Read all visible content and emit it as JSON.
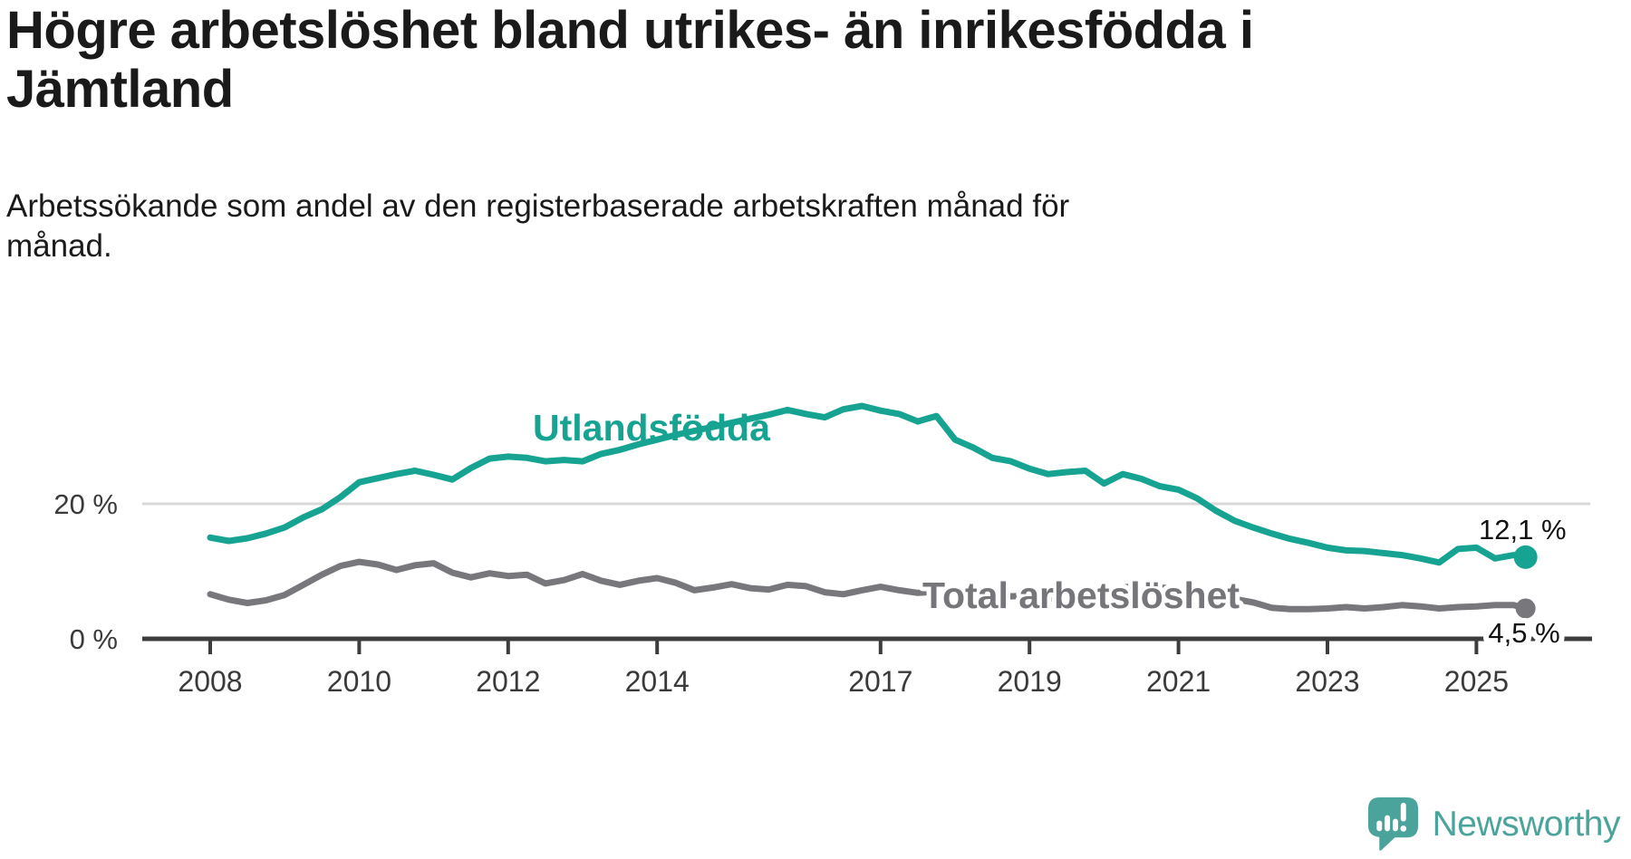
{
  "title": "Högre arbetslöshet bland utrikes- än inrikesfödda i\nJämtland",
  "subtitle": "Arbetssökande som andel av den registerbaserade arbetskraften månad för\nmånad.",
  "branding": {
    "name": "Newsworthy",
    "color": "#4ba49b",
    "icon": "newsworthy-bubble-chart-icon"
  },
  "colors": {
    "accent_teal": "#17a392",
    "line_gray": "#77777c",
    "series_label_gray": "#75757a",
    "axis": "#3d3d3d",
    "gridline": "#d8d8d8",
    "text": "#1a1a1a",
    "tick_text": "#3a3a3a"
  },
  "chart_data": {
    "type": "line",
    "title": "Högre arbetslöshet bland utrikes- än inrikesfödda i Jämtland",
    "xlabel": "",
    "ylabel": "Arbetssökande som andel av den registerbaserade arbetskraften (%)",
    "x_unit": "decimal_year",
    "xlim": [
      2007.9,
      2025.9
    ],
    "ylim": [
      0,
      36
    ],
    "grid": "y-only-at-20",
    "legend_position": "inline-labels",
    "x_ticks": [
      2008,
      2010,
      2012,
      2014,
      2017,
      2019,
      2021,
      2023,
      2025
    ],
    "y_ticks": [
      {
        "value": 0,
        "label": "0 %"
      },
      {
        "value": 20,
        "label": "20 %"
      }
    ],
    "x": [
      2008.0,
      2008.25,
      2008.5,
      2008.75,
      2009.0,
      2009.25,
      2009.5,
      2009.75,
      2010.0,
      2010.25,
      2010.5,
      2010.75,
      2011.0,
      2011.25,
      2011.5,
      2011.75,
      2012.0,
      2012.25,
      2012.5,
      2012.75,
      2013.0,
      2013.25,
      2013.5,
      2013.75,
      2014.0,
      2014.25,
      2014.5,
      2014.75,
      2015.0,
      2015.25,
      2015.5,
      2015.75,
      2016.0,
      2016.25,
      2016.5,
      2016.75,
      2017.0,
      2017.25,
      2017.5,
      2017.75,
      2018.0,
      2018.25,
      2018.5,
      2018.75,
      2019.0,
      2019.25,
      2019.5,
      2019.75,
      2020.0,
      2020.25,
      2020.5,
      2020.75,
      2021.0,
      2021.25,
      2021.5,
      2021.75,
      2022.0,
      2022.25,
      2022.5,
      2022.75,
      2023.0,
      2023.25,
      2023.5,
      2023.75,
      2024.0,
      2024.25,
      2024.5,
      2024.75,
      2025.0,
      2025.25,
      2025.5,
      2025.66
    ],
    "series": [
      {
        "name": "Utlandsfödda",
        "color": "#17a392",
        "end_label": "12,1 %",
        "end_value": 12.1,
        "values": [
          15.0,
          14.5,
          14.9,
          15.6,
          16.5,
          18.0,
          19.2,
          21.0,
          23.2,
          23.8,
          24.4,
          24.9,
          24.3,
          23.6,
          25.3,
          26.7,
          27.0,
          26.8,
          26.3,
          26.5,
          26.3,
          27.4,
          28.0,
          28.8,
          29.5,
          30.2,
          30.8,
          31.4,
          32.0,
          32.6,
          33.2,
          33.9,
          33.3,
          32.8,
          34.0,
          34.5,
          33.8,
          33.3,
          32.2,
          33.0,
          29.5,
          28.3,
          26.8,
          26.3,
          25.2,
          24.4,
          24.7,
          24.9,
          23.0,
          24.4,
          23.7,
          22.6,
          22.1,
          20.8,
          19.0,
          17.5,
          16.5,
          15.6,
          14.8,
          14.2,
          13.5,
          13.1,
          13.0,
          12.7,
          12.4,
          11.9,
          11.3,
          13.3,
          13.5,
          11.9,
          12.4,
          12.1
        ]
      },
      {
        "name": "Total arbetslöshet",
        "color": "#77777c",
        "end_label": "4,5 %",
        "end_value": 4.5,
        "values": [
          6.6,
          5.8,
          5.3,
          5.7,
          6.5,
          8.0,
          9.5,
          10.8,
          11.4,
          11.0,
          10.2,
          10.9,
          11.2,
          9.8,
          9.1,
          9.7,
          9.3,
          9.5,
          8.2,
          8.7,
          9.6,
          8.6,
          8.0,
          8.6,
          9.0,
          8.3,
          7.2,
          7.6,
          8.1,
          7.5,
          7.3,
          8.0,
          7.8,
          6.9,
          6.6,
          7.2,
          7.7,
          7.2,
          6.8,
          7.0,
          6.8,
          6.3,
          6.0,
          6.3,
          6.4,
          6.0,
          5.9,
          6.2,
          6.3,
          7.6,
          7.9,
          7.6,
          7.4,
          6.8,
          6.2,
          5.9,
          5.4,
          4.6,
          4.4,
          4.4,
          4.5,
          4.7,
          4.5,
          4.7,
          5.0,
          4.8,
          4.5,
          4.7,
          4.8,
          5.0,
          5.0,
          4.5
        ]
      }
    ]
  }
}
